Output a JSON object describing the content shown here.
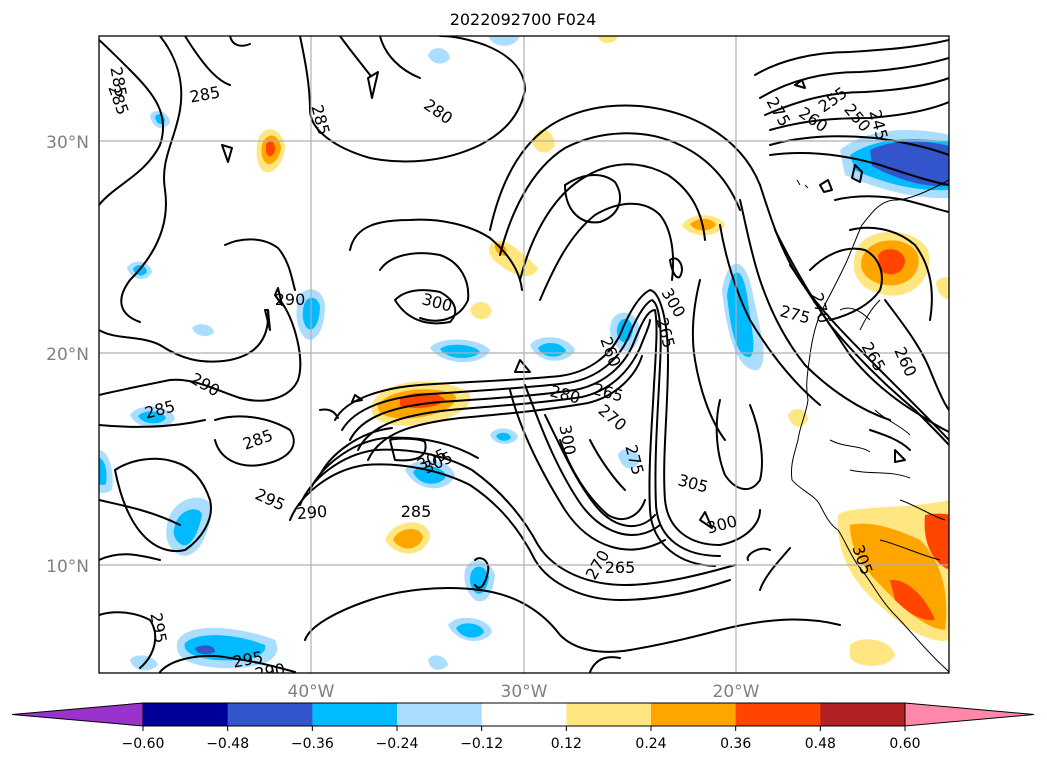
{
  "title": "2022092700 F024",
  "map": {
    "lat_ticks": [
      "30°N",
      "20°N",
      "10°N"
    ],
    "lon_ticks": [
      "40°W",
      "30°W",
      "20°W"
    ],
    "extent": {
      "lon": [
        -50,
        -10
      ],
      "lat": [
        5,
        35
      ]
    },
    "grid": true
  },
  "colorbar": {
    "ticks": [
      "−0.60",
      "−0.48",
      "−0.36",
      "−0.24",
      "−0.12",
      "0.12",
      "0.24",
      "0.36",
      "0.48",
      "0.60"
    ],
    "colors": [
      "#9933cc",
      "#000099",
      "#3355cc",
      "#00bbff",
      "#aaddff",
      "#ffffff",
      "#ffe680",
      "#ffa500",
      "#ff4500",
      "#b22222",
      "#ff88aa"
    ],
    "extend": "both"
  },
  "contour_labels": [
    {
      "text": "285"
    },
    {
      "text": "285"
    },
    {
      "text": "285"
    },
    {
      "text": "280"
    },
    {
      "text": "285"
    },
    {
      "text": "290"
    },
    {
      "text": "290"
    },
    {
      "text": "285"
    },
    {
      "text": "285"
    },
    {
      "text": "295"
    },
    {
      "text": "290"
    },
    {
      "text": "285"
    },
    {
      "text": "305"
    },
    {
      "text": "300"
    },
    {
      "text": "280"
    },
    {
      "text": "265"
    },
    {
      "text": "270"
    },
    {
      "text": "260"
    },
    {
      "text": "300"
    },
    {
      "text": "265"
    },
    {
      "text": "275"
    },
    {
      "text": "305"
    },
    {
      "text": "300"
    },
    {
      "text": "270"
    },
    {
      "text": "265"
    },
    {
      "text": "300"
    },
    {
      "text": "305"
    },
    {
      "text": "295"
    },
    {
      "text": "295"
    },
    {
      "text": "290"
    },
    {
      "text": "305"
    },
    {
      "text": "270"
    },
    {
      "text": "275"
    },
    {
      "text": "265"
    },
    {
      "text": "260"
    },
    {
      "text": "275"
    },
    {
      "text": "260"
    },
    {
      "text": "255"
    },
    {
      "text": "250"
    },
    {
      "text": "245"
    }
  ]
}
